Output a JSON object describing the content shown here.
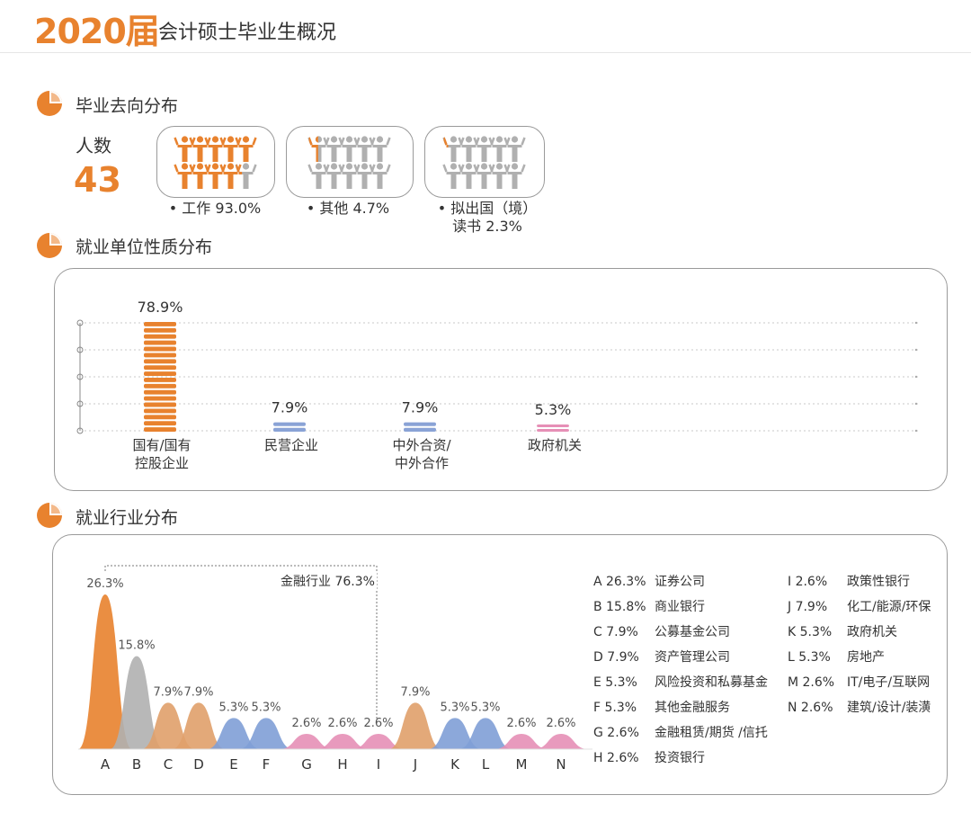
{
  "header": {
    "year": "2020届",
    "title": "会计硕士毕业生概况"
  },
  "colors": {
    "accent": "#e8822e",
    "gray": "#b0b0b0",
    "blue": "#7f9fd6",
    "pink": "#e68fb6",
    "tan": "#e0a06a"
  },
  "destination": {
    "title": "毕业去向分布",
    "count_label": "人数",
    "count_value": "43",
    "items": [
      {
        "label": "工作 93.0%",
        "value": 93.0
      },
      {
        "label": "其他 4.7%",
        "value": 4.7
      },
      {
        "label_line1": "拟出国（境）",
        "label_line2": "读书 2.3%",
        "value": 2.3
      }
    ]
  },
  "employer_type": {
    "title": "就业单位性质分布",
    "bars": [
      {
        "label_line1": "国有/国有",
        "label_line2": "控股企业",
        "value_label": "78.9%",
        "value": 78.9,
        "color": "#e8822e"
      },
      {
        "label_line1": "民营企业",
        "label_line2": "",
        "value_label": "7.9%",
        "value": 7.9,
        "color": "#8aa3d6"
      },
      {
        "label_line1": "中外合资/",
        "label_line2": "中外合作",
        "value_label": "7.9%",
        "value": 7.9,
        "color": "#8aa3d6"
      },
      {
        "label_line1": "政府机关",
        "label_line2": "",
        "value_label": "5.3%",
        "value": 5.3,
        "color": "#e68fb6"
      }
    ]
  },
  "industry": {
    "title": "就业行业分布",
    "bracket_label": "金融行业 76.3%",
    "legend_left": [
      {
        "key": "A",
        "pct": "26.3%",
        "name": "证券公司"
      },
      {
        "key": "B",
        "pct": "15.8%",
        "name": "商业银行"
      },
      {
        "key": "C",
        "pct": "7.9%",
        "name": "公募基金公司"
      },
      {
        "key": "D",
        "pct": "7.9%",
        "name": "资产管理公司"
      },
      {
        "key": "E",
        "pct": "5.3%",
        "name": "风险投资和私募基金"
      },
      {
        "key": "F",
        "pct": "5.3%",
        "name": "其他金融服务"
      },
      {
        "key": "G",
        "pct": "2.6%",
        "name": "金融租赁/期货 /信托"
      },
      {
        "key": "H",
        "pct": "2.6%",
        "name": "投资银行"
      }
    ],
    "legend_right": [
      {
        "key": "I",
        "pct": "2.6%",
        "name": "政策性银行"
      },
      {
        "key": "J",
        "pct": "7.9%",
        "name": "化工/能源/环保"
      },
      {
        "key": "K",
        "pct": "5.3%",
        "name": "政府机关"
      },
      {
        "key": "L",
        "pct": "5.3%",
        "name": "房地产"
      },
      {
        "key": "M",
        "pct": "2.6%",
        "name": "IT/电子/互联网"
      },
      {
        "key": "N",
        "pct": "2.6%",
        "name": "建筑/设计/装潢"
      }
    ]
  },
  "chart_data": [
    {
      "type": "pie",
      "categories": [
        "工作",
        "其他",
        "拟出国（境）读书"
      ],
      "values": [
        93.0,
        4.7,
        2.3
      ]
    },
    {
      "type": "bar",
      "categories": [
        "国有/国有控股企业",
        "民营企业",
        "中外合资/中外合作",
        "政府机关"
      ],
      "values": [
        78.9,
        7.9,
        7.9,
        5.3
      ],
      "value_labels": [
        "78.9%",
        "7.9%",
        "7.9%",
        "5.3%"
      ]
    },
    {
      "type": "area",
      "categories": [
        "A",
        "B",
        "C",
        "D",
        "E",
        "F",
        "G",
        "H",
        "I",
        "J",
        "K",
        "L",
        "M",
        "N"
      ],
      "values": [
        26.3,
        15.8,
        7.9,
        7.9,
        5.3,
        5.3,
        2.6,
        2.6,
        2.6,
        7.9,
        5.3,
        5.3,
        2.6,
        2.6
      ],
      "value_labels": [
        "26.3%",
        "15.8%",
        "7.9%",
        "7.9%",
        "5.3%",
        "5.3%",
        "2.6%",
        "2.6%",
        "2.6%",
        "7.9%",
        "5.3%",
        "5.3%",
        "2.6%",
        "2.6%"
      ],
      "colors": [
        "#e8822e",
        "#b0b0b0",
        "#e0a06a",
        "#e0a06a",
        "#7f9fd6",
        "#7f9fd6",
        "#e68fb6",
        "#e68fb6",
        "#e68fb6",
        "#e0a06a",
        "#7f9fd6",
        "#7f9fd6",
        "#e68fb6",
        "#e68fb6"
      ]
    }
  ]
}
